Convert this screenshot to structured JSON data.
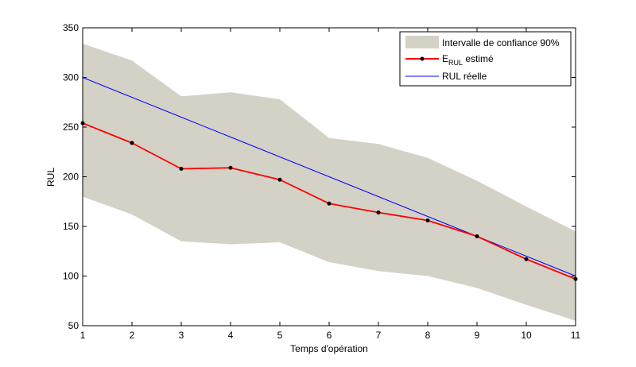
{
  "chart_data": {
    "type": "line",
    "xlabel": "Temps d'opération",
    "ylabel": "RUL",
    "xlim": [
      1,
      11
    ],
    "ylim": [
      50,
      350
    ],
    "xticks": [
      1,
      2,
      3,
      4,
      5,
      6,
      7,
      8,
      9,
      10,
      11
    ],
    "yticks": [
      50,
      100,
      150,
      200,
      250,
      300,
      350
    ],
    "grid": false,
    "legend_position": "top-right",
    "x": [
      1,
      2,
      3,
      4,
      5,
      6,
      7,
      8,
      9,
      10,
      11
    ],
    "confidence_band": {
      "name": "Intervalle de confiance 90%",
      "color": "#d4d1c6",
      "upper": [
        334,
        317,
        281,
        285,
        278,
        239,
        233,
        219,
        196,
        170,
        145
      ],
      "lower": [
        180,
        162,
        135,
        132,
        134,
        114,
        105,
        100,
        88,
        71,
        55
      ]
    },
    "series": [
      {
        "name_main": "E",
        "name_sub": "RUL",
        "name_suffix": " estimé",
        "color": "#ff0000",
        "marker_color": "#000000",
        "values": [
          254,
          234,
          208,
          209,
          197,
          173,
          164,
          156,
          140,
          117,
          97
        ]
      },
      {
        "name": "RUL réelle",
        "color": "#0000ff",
        "values": [
          300,
          280,
          260,
          240,
          220,
          200,
          180,
          160,
          140,
          120,
          100
        ]
      }
    ]
  }
}
